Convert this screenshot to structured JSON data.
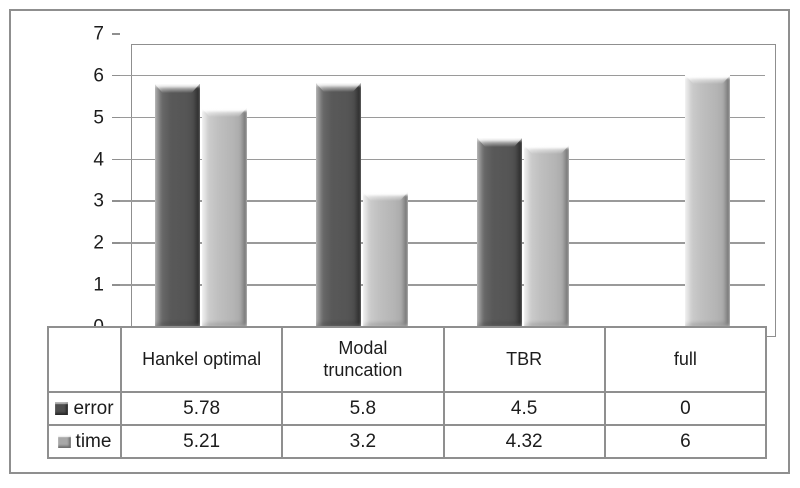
{
  "chart_data": {
    "type": "bar",
    "title": "",
    "xlabel": "",
    "ylabel": "",
    "categories": [
      "Hankel optimal",
      "Modal truncation",
      "TBR",
      "full"
    ],
    "series": [
      {
        "name": "error",
        "values": [
          5.78,
          5.8,
          4.5,
          0
        ],
        "color": "#595959"
      },
      {
        "name": "time",
        "values": [
          5.21,
          3.2,
          4.32,
          6
        ],
        "color": "#c0c0c0"
      }
    ],
    "ylim": [
      0,
      7
    ],
    "ytick_step": 1,
    "ytick_labels": [
      "0",
      "1",
      "2",
      "3",
      "4",
      "5",
      "6",
      "7"
    ],
    "grid": true,
    "legend_position": "data-table-left",
    "data_table_shown": true
  },
  "colors": {
    "background": "#ffffff",
    "frame_border": "#8f8f8f",
    "gridline": "#9a9a9a",
    "text": "#1c1c1c",
    "error_bar": "#595959",
    "time_bar": "#c0c0c0"
  }
}
